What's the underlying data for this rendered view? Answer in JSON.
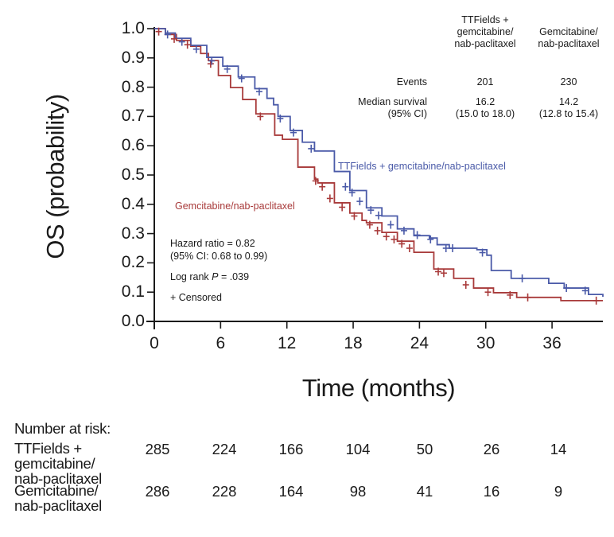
{
  "chart_data": {
    "type": "line",
    "subtype": "kaplan-meier",
    "title": "",
    "xlabel": "Time (months)",
    "ylabel": "OS (probability)",
    "xlim": [
      0,
      40.6
    ],
    "ylim": [
      0,
      1.0
    ],
    "x_ticks": [
      "0",
      "6",
      "12",
      "18",
      "24",
      "30",
      "36"
    ],
    "x_tick_values": [
      0,
      6,
      12,
      18,
      24,
      30,
      36
    ],
    "y_ticks": [
      "0.0",
      "0.1",
      "0.2",
      "0.3",
      "0.4",
      "0.5",
      "0.6",
      "0.7",
      "0.8",
      "0.9",
      "1.0"
    ],
    "y_tick_values": [
      0,
      0.1,
      0.2,
      0.3,
      0.4,
      0.5,
      0.6,
      0.7,
      0.8,
      0.9,
      1.0
    ],
    "grid": false,
    "series": [
      {
        "name": "TTFields + gemcitabine/nab-paclitaxel",
        "color": "#4a5aa8",
        "label_text": "TTFields + gemcitabine/nab-paclitaxel",
        "points": [
          [
            0,
            1.0
          ],
          [
            1.0,
            0.985
          ],
          [
            1.9,
            0.967
          ],
          [
            3.3,
            0.943
          ],
          [
            4.75,
            0.902
          ],
          [
            6.2,
            0.872
          ],
          [
            7.6,
            0.835
          ],
          [
            9.1,
            0.795
          ],
          [
            10.2,
            0.762
          ],
          [
            10.8,
            0.74
          ],
          [
            11.2,
            0.7
          ],
          [
            12.3,
            0.652
          ],
          [
            13.4,
            0.612
          ],
          [
            14.5,
            0.582
          ],
          [
            16.3,
            0.512
          ],
          [
            17.7,
            0.447
          ],
          [
            19.2,
            0.388
          ],
          [
            20.6,
            0.36
          ],
          [
            22.0,
            0.316
          ],
          [
            23.5,
            0.293
          ],
          [
            24.9,
            0.285
          ],
          [
            25.6,
            0.262
          ],
          [
            26.7,
            0.25
          ],
          [
            29.2,
            0.245
          ],
          [
            30.1,
            0.226
          ],
          [
            30.5,
            0.174
          ],
          [
            32.3,
            0.147
          ],
          [
            35.0,
            0.147
          ],
          [
            35.7,
            0.13
          ],
          [
            37.1,
            0.114
          ],
          [
            38.9,
            0.114
          ],
          [
            39.3,
            0.092
          ],
          [
            40.6,
            0.084
          ]
        ],
        "censored": [
          [
            1.2,
            0.98
          ],
          [
            2.5,
            0.955
          ],
          [
            3.8,
            0.93
          ],
          [
            5.2,
            0.89
          ],
          [
            6.6,
            0.862
          ],
          [
            7.9,
            0.83
          ],
          [
            9.5,
            0.785
          ],
          [
            11.4,
            0.693
          ],
          [
            12.6,
            0.645
          ],
          [
            14.2,
            0.59
          ],
          [
            17.3,
            0.46
          ],
          [
            17.9,
            0.44
          ],
          [
            18.6,
            0.41
          ],
          [
            19.6,
            0.38
          ],
          [
            20.3,
            0.362
          ],
          [
            21.4,
            0.33
          ],
          [
            22.6,
            0.31
          ],
          [
            23.8,
            0.295
          ],
          [
            25.0,
            0.28
          ],
          [
            26.4,
            0.25
          ],
          [
            27.0,
            0.25
          ],
          [
            29.7,
            0.235
          ],
          [
            33.3,
            0.147
          ],
          [
            37.3,
            0.114
          ],
          [
            39.0,
            0.105
          ]
        ],
        "events": 201,
        "median_survival": "16.2",
        "median_ci": "(15.0 to 18.0)"
      },
      {
        "name": "Gemcitabine/nab-paclitaxel",
        "color": "#a83a3a",
        "label_text": "Gemcitabine/nab-paclitaxel",
        "points": [
          [
            0,
            1.0
          ],
          [
            1.0,
            0.98
          ],
          [
            2.0,
            0.96
          ],
          [
            3.3,
            0.94
          ],
          [
            4.2,
            0.915
          ],
          [
            4.9,
            0.891
          ],
          [
            5.8,
            0.84
          ],
          [
            6.9,
            0.799
          ],
          [
            8.0,
            0.758
          ],
          [
            9.2,
            0.709
          ],
          [
            10.9,
            0.636
          ],
          [
            11.6,
            0.622
          ],
          [
            13.0,
            0.527
          ],
          [
            14.5,
            0.486
          ],
          [
            14.8,
            0.473
          ],
          [
            16.3,
            0.405
          ],
          [
            17.7,
            0.37
          ],
          [
            18.8,
            0.345
          ],
          [
            19.2,
            0.337
          ],
          [
            20.6,
            0.304
          ],
          [
            22.0,
            0.274
          ],
          [
            23.5,
            0.236
          ],
          [
            25.3,
            0.179
          ],
          [
            27.1,
            0.147
          ],
          [
            28.9,
            0.114
          ],
          [
            30.7,
            0.098
          ],
          [
            32.8,
            0.082
          ],
          [
            36.8,
            0.071
          ],
          [
            40.6,
            0.071
          ]
        ],
        "censored": [
          [
            0.4,
            0.99
          ],
          [
            1.8,
            0.965
          ],
          [
            3.0,
            0.945
          ],
          [
            5.1,
            0.88
          ],
          [
            9.6,
            0.7
          ],
          [
            14.6,
            0.48
          ],
          [
            15.2,
            0.46
          ],
          [
            15.9,
            0.42
          ],
          [
            17.0,
            0.39
          ],
          [
            18.1,
            0.36
          ],
          [
            19.5,
            0.33
          ],
          [
            20.2,
            0.31
          ],
          [
            21.0,
            0.29
          ],
          [
            21.7,
            0.28
          ],
          [
            22.4,
            0.265
          ],
          [
            23.1,
            0.25
          ],
          [
            25.7,
            0.17
          ],
          [
            26.2,
            0.165
          ],
          [
            28.2,
            0.125
          ],
          [
            30.2,
            0.1
          ],
          [
            32.2,
            0.09
          ],
          [
            33.8,
            0.082
          ],
          [
            40.0,
            0.071
          ]
        ],
        "events": 230,
        "median_survival": "14.2",
        "median_ci": "(12.8 to 15.4)"
      }
    ],
    "annotations": {
      "hazard_ratio": "Hazard ratio = 0.82",
      "hazard_ci": "(95% CI: 0.68 to 0.99)",
      "log_rank_prefix": "Log rank ",
      "log_rank_p": "P",
      "log_rank_value": " = .039",
      "censored_legend": "+ Censored"
    },
    "stats_table": {
      "col_headers": [
        [
          "TTFields +",
          "gemcitabine/",
          "nab-paclitaxel"
        ],
        [
          "Gemcitabine/",
          "nab-paclitaxel"
        ]
      ],
      "row_labels": {
        "events": "Events",
        "median": "Median survival",
        "median_ci": "(95% CI)"
      },
      "events": [
        "201",
        "230"
      ],
      "median": [
        "16.2",
        "14.2"
      ],
      "median_ci": [
        "(15.0 to 18.0)",
        "(12.8 to 15.4)"
      ]
    },
    "number_at_risk": {
      "title": "Number at risk:",
      "rows": [
        {
          "label_lines": [
            "TTFields +",
            "gemcitabine/",
            "nab-paclitaxel"
          ],
          "values": [
            "285",
            "224",
            "166",
            "104",
            "50",
            "26",
            "14"
          ]
        },
        {
          "label_lines": [
            "Gemcitabine/",
            "nab-paclitaxel"
          ],
          "values": [
            "286",
            "228",
            "164",
            "98",
            "41",
            "16",
            "9"
          ]
        }
      ]
    }
  }
}
